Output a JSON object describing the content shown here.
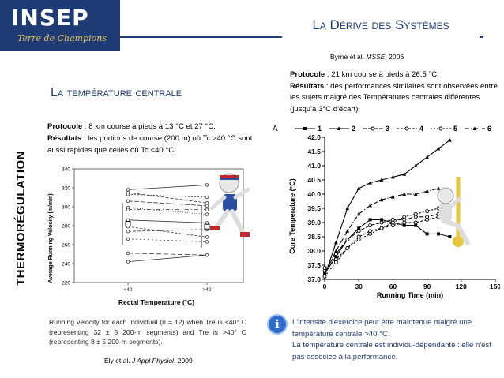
{
  "header": {
    "logo_text": "INSEP",
    "logo_tagline": "Terre de Champions",
    "page_title": "La Dérive des Systèmes",
    "brand_color": "#1f3b73"
  },
  "side_label": "THERMORÉGULATION",
  "left": {
    "subtitle": "La température centrale",
    "protocol_label": "Protocole",
    "protocol_text": " : 8 km course à pieds à 13 °C et 27 °C.",
    "results_label": "Résultats",
    "results_text": " : les portions de course (200 m) où Tc >40 °C sont aussi rapides que celles où Tc <40 °C.",
    "caption": "Running velocity for each individual (n = 12) when Tre is <40° C (representing 32 ± 5 200-m segments) and Tre is >40° C (representing 8 ± 5 200-m segments).",
    "reference_prefix": "Ely et al. ",
    "reference_journal": "J Appl Physiol",
    "reference_suffix": ", 2009"
  },
  "right": {
    "reference_prefix": "Byrne et al. ",
    "reference_journal": "MSSE",
    "reference_suffix": ", 2006",
    "protocol_label": "Protocole",
    "protocol_text": " : 21 km course à pieds à 26,5 °C.",
    "results_label": "Résultats",
    "results_text": " : des performances similaires sont observées entre les sujets malgré des Températures centrales différentes (jusqu'à 3°C d'écart).",
    "bottom_line1": "L'intensité d'exercice peut être maintenue malgré une température centrale >40 °C.",
    "bottom_line2": "La température centrale est individu-dépendante : elle n'est pas associée à la performance.",
    "info_icon_glyph": "i"
  },
  "chart_data": [
    {
      "type": "line",
      "title": "",
      "xlabel": "Rectal Temperature (°C)",
      "ylabel": "Average Running Velocity (m/min)",
      "categories": [
        "<40",
        ">40"
      ],
      "ylim": [
        220,
        340
      ],
      "yticks": [
        220,
        240,
        260,
        280,
        300,
        320,
        340
      ],
      "series": [
        {
          "values": [
            318,
            323
          ]
        },
        {
          "values": [
            315,
            304
          ]
        },
        {
          "values": [
            313,
            310
          ]
        },
        {
          "values": [
            306,
            301
          ]
        },
        {
          "values": [
            299,
            292
          ]
        },
        {
          "values": [
            297,
            297
          ]
        },
        {
          "values": [
            286,
            283
          ]
        },
        {
          "values": [
            279,
            268
          ]
        },
        {
          "values": [
            274,
            276
          ]
        },
        {
          "values": [
            266,
            263
          ]
        },
        {
          "values": [
            251,
            249
          ]
        },
        {
          "values": [
            242,
            249
          ]
        }
      ],
      "means": [
        282,
        279
      ]
    },
    {
      "type": "line",
      "title": "",
      "panel_label": "A",
      "xlabel": "Running Time (min)",
      "ylabel": "Core Temperature (°C)",
      "xlim": [
        0,
        150
      ],
      "ylim": [
        37.0,
        42.0
      ],
      "xticks": [
        0,
        30,
        60,
        90,
        120,
        150
      ],
      "yticks": [
        37.0,
        37.5,
        38.0,
        38.5,
        39.0,
        39.5,
        40.0,
        40.5,
        41.0,
        41.5,
        42.0
      ],
      "legend": [
        "1",
        "2",
        "3",
        "4",
        "5",
        "6"
      ],
      "legend_placement": "top",
      "series": [
        {
          "name": "1",
          "x": [
            0,
            10,
            20,
            30,
            40,
            50,
            60,
            70,
            80,
            90,
            100,
            110
          ],
          "y": [
            37.2,
            37.8,
            38.4,
            38.8,
            39.1,
            39.1,
            39.0,
            38.9,
            38.9,
            38.6,
            38.6,
            38.5
          ]
        },
        {
          "name": "2",
          "x": [
            0,
            10,
            20,
            30,
            40,
            50,
            60,
            70,
            80,
            90,
            100,
            110
          ],
          "y": [
            37.1,
            38.3,
            39.5,
            40.2,
            40.4,
            40.5,
            40.6,
            40.7,
            41.0,
            41.3,
            41.6,
            41.9
          ]
        },
        {
          "name": "3",
          "x": [
            0,
            10,
            20,
            30,
            40,
            50,
            60,
            70,
            80,
            90,
            100,
            110
          ],
          "y": [
            37.3,
            37.9,
            38.4,
            38.7,
            38.9,
            39.0,
            39.1,
            39.1,
            39.2,
            39.2,
            39.3,
            39.6
          ]
        },
        {
          "name": "4",
          "x": [
            0,
            10,
            20,
            30,
            40,
            50,
            60,
            70,
            80,
            90,
            100,
            110
          ],
          "y": [
            37.4,
            37.7,
            38.1,
            38.5,
            38.7,
            38.8,
            38.9,
            39.0,
            39.0,
            39.1,
            39.2,
            39.2
          ]
        },
        {
          "name": "5",
          "x": [
            0,
            10,
            20,
            30,
            40,
            50,
            60,
            70,
            80,
            90,
            100,
            110
          ],
          "y": [
            37.1,
            37.6,
            38.1,
            38.4,
            38.6,
            38.8,
            39.0,
            39.2,
            39.3,
            39.4,
            39.5,
            40.0
          ]
        },
        {
          "name": "6",
          "x": [
            0,
            10,
            20,
            30,
            40,
            50,
            60,
            70,
            80,
            90,
            100,
            110
          ],
          "y": [
            37.2,
            38.0,
            38.7,
            39.3,
            39.6,
            39.8,
            39.9,
            40.0,
            40.0,
            40.1,
            40.2,
            39.9
          ]
        }
      ]
    }
  ]
}
